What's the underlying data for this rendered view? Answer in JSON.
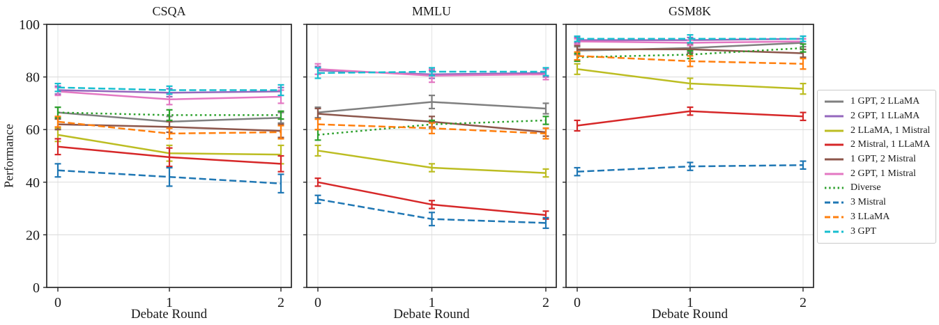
{
  "figure": {
    "background": "#ffffff",
    "text_color": "#1b1b1b",
    "spine_color": "#262626",
    "grid_color": "#dadada"
  },
  "chart_data": {
    "type": "line",
    "x": [
      0,
      1,
      2
    ],
    "xlabel": "Debate Round",
    "ylabel": "Performance",
    "ylim": [
      0,
      100
    ],
    "yticks": [
      0,
      20,
      40,
      60,
      80,
      100
    ],
    "grid": true,
    "error_bars": true,
    "legend_position": "right-outside",
    "styles": {
      "1 GPT, 2 LLaMA": {
        "color": "#7f7f7f",
        "linestyle": "solid"
      },
      "2 GPT, 1 LLaMA": {
        "color": "#9467bd",
        "linestyle": "solid"
      },
      "2 LLaMA, 1 Mistral": {
        "color": "#bcbd22",
        "linestyle": "solid"
      },
      "2 Mistral, 1 LLaMA": {
        "color": "#d62728",
        "linestyle": "solid"
      },
      "1 GPT, 2 Mistral": {
        "color": "#8c564b",
        "linestyle": "solid"
      },
      "2 GPT, 1 Mistral": {
        "color": "#e377c2",
        "linestyle": "solid"
      },
      "Diverse": {
        "color": "#2ca02c",
        "linestyle": "dotted"
      },
      "3 Mistral": {
        "color": "#1f77b4",
        "linestyle": "dashed"
      },
      "3 LLaMA": {
        "color": "#ff7f0e",
        "linestyle": "dashed"
      },
      "3 GPT": {
        "color": "#17becf",
        "linestyle": "dashed"
      }
    },
    "legend": [
      "1 GPT, 2 LLaMA",
      "2 GPT, 1 LLaMA",
      "2 LLaMA, 1 Mistral",
      "2 Mistral, 1 LLaMA",
      "1 GPT, 2 Mistral",
      "2 GPT, 1 Mistral",
      "Diverse",
      "3 Mistral",
      "3 LLaMA",
      "3 GPT"
    ],
    "panels": [
      {
        "title": "CSQA",
        "series": [
          {
            "name": "1 GPT, 2 LLaMA",
            "values": [
              66.5,
              63.0,
              64.5
            ],
            "errors": [
              2.0,
              2.0,
              2.0
            ]
          },
          {
            "name": "2 GPT, 1 LLaMA",
            "values": [
              75.0,
              74.0,
              74.5
            ],
            "errors": [
              1.5,
              1.5,
              1.5
            ]
          },
          {
            "name": "2 LLaMA, 1 Mistral",
            "values": [
              58.0,
              51.0,
              50.5
            ],
            "errors": [
              2.5,
              3.0,
              3.5
            ]
          },
          {
            "name": "2 Mistral, 1 LLaMA",
            "values": [
              53.5,
              49.5,
              47.0
            ],
            "errors": [
              3.0,
              3.5,
              3.0
            ]
          },
          {
            "name": "1 GPT, 2 Mistral",
            "values": [
              62.0,
              61.0,
              59.5
            ],
            "errors": [
              2.0,
              2.0,
              2.5
            ]
          },
          {
            "name": "2 GPT, 1 Mistral",
            "values": [
              74.5,
              71.5,
              72.5
            ],
            "errors": [
              1.5,
              2.0,
              2.5
            ]
          },
          {
            "name": "Diverse",
            "values": [
              66.5,
              65.5,
              65.5
            ],
            "errors": [
              2.0,
              2.0,
              1.5
            ]
          },
          {
            "name": "3 Mistral",
            "values": [
              44.5,
              42.0,
              39.5
            ],
            "errors": [
              2.5,
              3.5,
              3.5
            ]
          },
          {
            "name": "3 LLaMA",
            "values": [
              63.0,
              58.5,
              59.0
            ],
            "errors": [
              2.0,
              2.0,
              2.5
            ]
          },
          {
            "name": "3 GPT",
            "values": [
              76.0,
              75.0,
              75.0
            ],
            "errors": [
              1.5,
              1.5,
              2.0
            ]
          }
        ]
      },
      {
        "title": "MMLU",
        "series": [
          {
            "name": "1 GPT, 2 LLaMA",
            "values": [
              66.5,
              70.5,
              68.0
            ],
            "errors": [
              2.0,
              2.5,
              2.0
            ]
          },
          {
            "name": "2 GPT, 1 LLaMA",
            "values": [
              82.5,
              81.0,
              81.5
            ],
            "errors": [
              1.5,
              1.5,
              1.5
            ]
          },
          {
            "name": "2 LLaMA, 1 Mistral",
            "values": [
              52.0,
              45.5,
              43.5
            ],
            "errors": [
              2.0,
              1.5,
              1.5
            ]
          },
          {
            "name": "2 Mistral, 1 LLaMA",
            "values": [
              40.0,
              31.5,
              27.5
            ],
            "errors": [
              1.5,
              1.5,
              1.5
            ]
          },
          {
            "name": "1 GPT, 2 Mistral",
            "values": [
              66.0,
              63.0,
              59.0
            ],
            "errors": [
              2.0,
              2.0,
              1.5
            ]
          },
          {
            "name": "2 GPT, 1 Mistral",
            "values": [
              83.0,
              80.5,
              81.0
            ],
            "errors": [
              2.0,
              2.5,
              2.0
            ]
          },
          {
            "name": "Diverse",
            "values": [
              58.0,
              62.0,
              63.5
            ],
            "errors": [
              2.0,
              1.5,
              1.5
            ]
          },
          {
            "name": "3 Mistral",
            "values": [
              33.5,
              26.0,
              24.5
            ],
            "errors": [
              1.5,
              2.5,
              2.0
            ]
          },
          {
            "name": "3 LLaMA",
            "values": [
              62.0,
              60.5,
              58.5
            ],
            "errors": [
              2.0,
              2.0,
              2.0
            ]
          },
          {
            "name": "3 GPT",
            "values": [
              81.5,
              82.0,
              82.0
            ],
            "errors": [
              2.0,
              1.5,
              1.5
            ]
          }
        ]
      },
      {
        "title": "GSM8K",
        "series": [
          {
            "name": "1 GPT, 2 LLaMA",
            "values": [
              90.0,
              91.0,
              93.0
            ],
            "errors": [
              1.5,
              1.5,
              1.5
            ]
          },
          {
            "name": "2 GPT, 1 LLaMA",
            "values": [
              94.0,
              94.0,
              94.5
            ],
            "errors": [
              1.0,
              1.0,
              1.0
            ]
          },
          {
            "name": "2 LLaMA, 1 Mistral",
            "values": [
              83.0,
              77.5,
              75.5
            ],
            "errors": [
              2.0,
              2.0,
              2.0
            ]
          },
          {
            "name": "2 Mistral, 1 LLaMA",
            "values": [
              61.5,
              67.0,
              65.0
            ],
            "errors": [
              2.0,
              1.5,
              1.5
            ]
          },
          {
            "name": "1 GPT, 2 Mistral",
            "values": [
              90.5,
              90.5,
              89.0
            ],
            "errors": [
              1.5,
              1.5,
              1.5
            ]
          },
          {
            "name": "2 GPT, 1 Mistral",
            "values": [
              93.5,
              93.0,
              93.5
            ],
            "errors": [
              1.0,
              1.0,
              1.0
            ]
          },
          {
            "name": "Diverse",
            "values": [
              87.5,
              88.5,
              91.0
            ],
            "errors": [
              1.5,
              1.5,
              1.5
            ]
          },
          {
            "name": "3 Mistral",
            "values": [
              44.0,
              46.0,
              46.5
            ],
            "errors": [
              1.5,
              1.5,
              1.5
            ]
          },
          {
            "name": "3 LLaMA",
            "values": [
              88.0,
              86.0,
              85.0
            ],
            "errors": [
              1.5,
              2.0,
              2.0
            ]
          },
          {
            "name": "3 GPT",
            "values": [
              94.5,
              94.5,
              94.5
            ],
            "errors": [
              1.0,
              1.5,
              1.0
            ]
          }
        ]
      }
    ]
  }
}
